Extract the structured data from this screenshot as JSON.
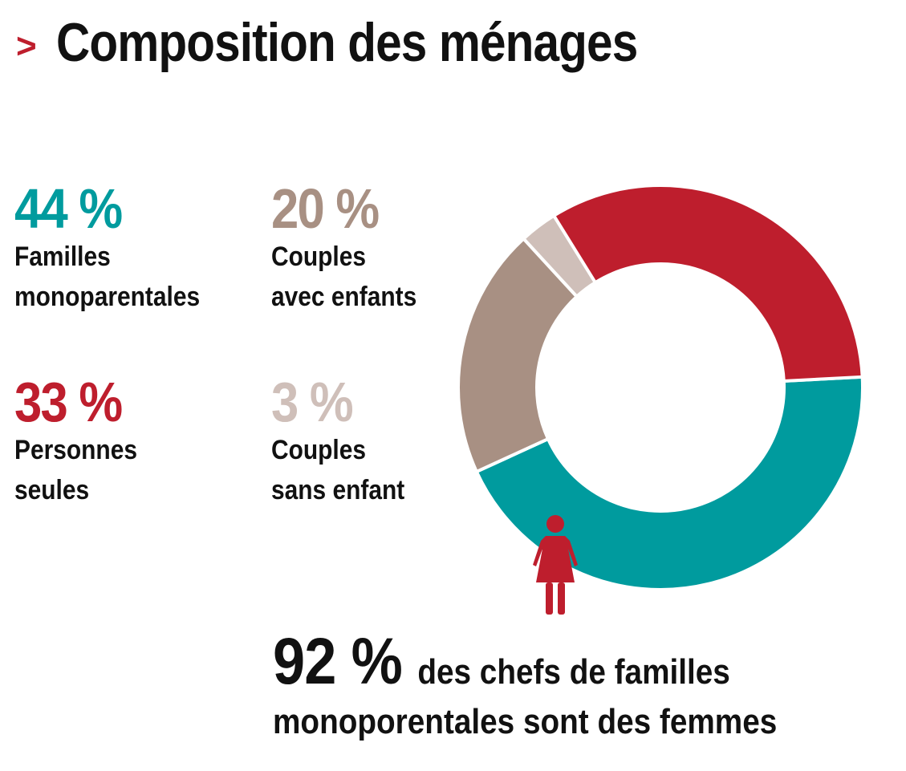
{
  "title": "Composition des ménages",
  "chevron": ">",
  "stats": [
    {
      "value": "44 %",
      "label_line1": "Familles",
      "label_line2": "monoparentales",
      "color": "#009b9e"
    },
    {
      "value": "20 %",
      "label_line1": "Couples",
      "label_line2": "avec enfants",
      "color": "#a89083"
    },
    {
      "value": "33 %",
      "label_line1": "Personnes",
      "label_line2": "seules",
      "color": "#be1e2d"
    },
    {
      "value": "3 %",
      "label_line1": "Couples",
      "label_line2": "sans enfant",
      "color": "#cfbfb9"
    }
  ],
  "note": {
    "big": "92 %",
    "line1": "des chefs de familles",
    "line2": "monoporentales sont des femmes"
  },
  "icons": {
    "woman": "woman-icon",
    "chevron": "chevron-right-icon"
  },
  "chart_data": {
    "type": "pie",
    "donut": true,
    "title": "Composition des ménages",
    "start_angle_deg": -3,
    "slices": [
      {
        "label": "Familles monoparentales",
        "value": 44,
        "color": "#009b9e"
      },
      {
        "label": "Couples avec enfants",
        "value": 20,
        "color": "#a89083"
      },
      {
        "label": "Couples sans enfant",
        "value": 3,
        "color": "#cfbfb9"
      },
      {
        "label": "Personnes seules",
        "value": 33,
        "color": "#be1e2d"
      }
    ]
  }
}
